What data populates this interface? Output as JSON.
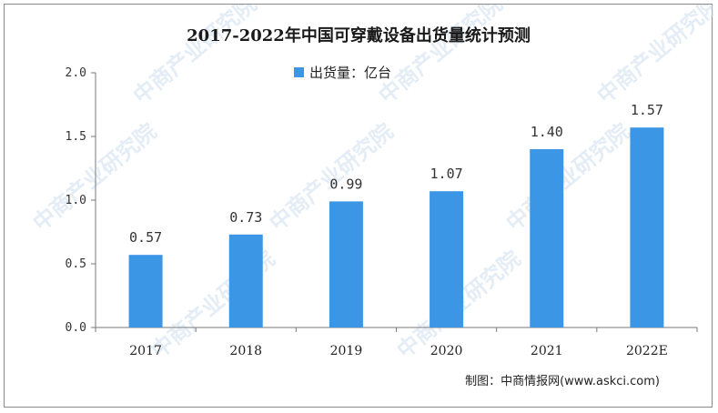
{
  "chart_data": {
    "type": "bar",
    "title": "2017-2022年中国可穿戴设备出货量统计预测",
    "categories": [
      "2017",
      "2018",
      "2019",
      "2020",
      "2021",
      "2022E"
    ],
    "series": [
      {
        "name": "出货量：亿台",
        "values": [
          0.57,
          0.73,
          0.99,
          1.07,
          1.4,
          1.57
        ]
      }
    ],
    "data_labels": [
      "0.57",
      "0.73",
      "0.99",
      "1.07",
      "1.40",
      "1.57"
    ],
    "y_ticks": [
      "0.0",
      "0.5",
      "1.0",
      "1.5",
      "2.0"
    ],
    "ylim": [
      0,
      2.0
    ],
    "xlabel": "",
    "ylabel": "",
    "grid": false,
    "legend_position": "top-center",
    "bar_color": "#3b96e6"
  },
  "source_text": "制图：中商情报网(www.askci.com)",
  "watermark_text": "中商产业研究院"
}
